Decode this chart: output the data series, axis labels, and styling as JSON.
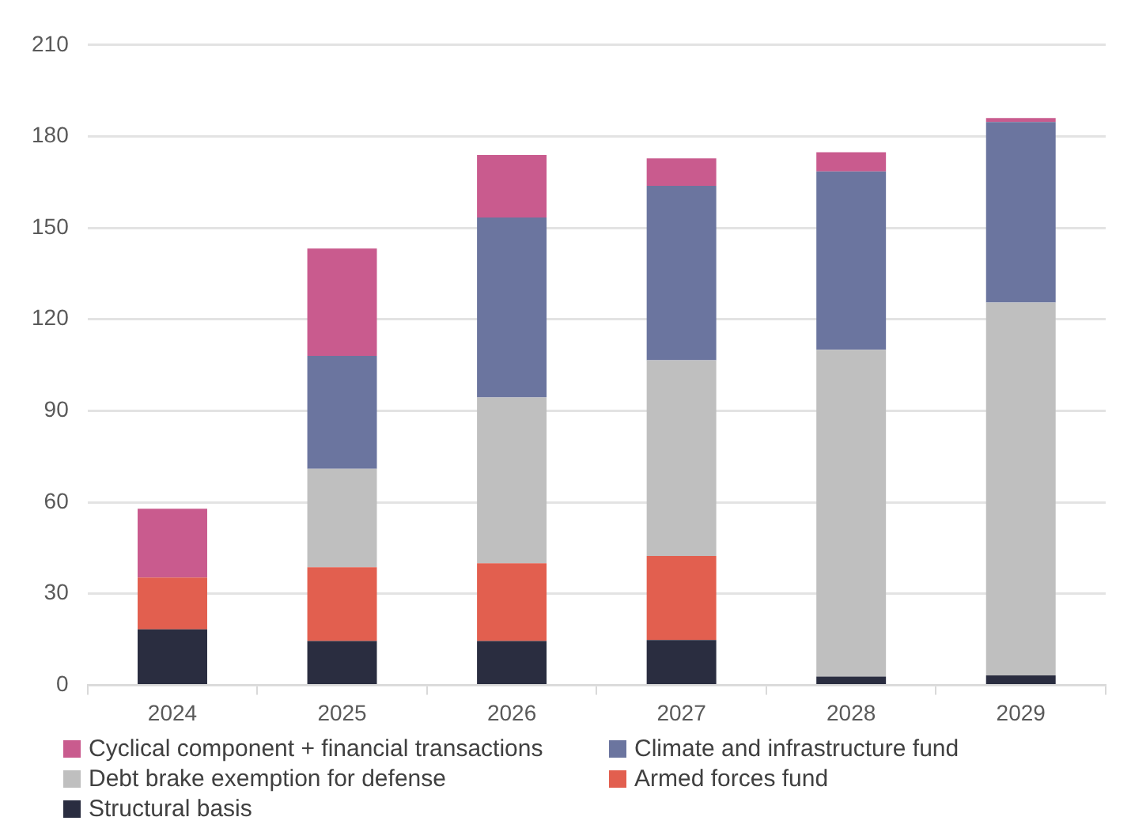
{
  "chart_data": {
    "type": "bar",
    "stacked": true,
    "categories": [
      "2024",
      "2025",
      "2026",
      "2027",
      "2028",
      "2029"
    ],
    "series": [
      {
        "name": "Structural basis",
        "color": "#2a2d40",
        "values": [
          18.3,
          14.5,
          14.5,
          14.8,
          2.8,
          3.2
        ]
      },
      {
        "name": "Armed forces fund",
        "color": "#e25f4f",
        "values": [
          17,
          24.2,
          25.5,
          27.6,
          0,
          0
        ]
      },
      {
        "name": "Debt brake exemption for defense",
        "color": "#bfbfbf",
        "values": [
          0,
          32.3,
          54.4,
          64.2,
          107.2,
          122.3
        ]
      },
      {
        "name": "Climate and infrastructure fund",
        "color": "#6b759f",
        "values": [
          0,
          37,
          59,
          57.2,
          58.5,
          59.2
        ]
      },
      {
        "name": "Cyclical component + financial transactions",
        "color": "#c95b8e",
        "values": [
          22.6,
          35.2,
          20.5,
          9,
          6.3,
          1.3
        ]
      }
    ],
    "ylim": [
      0,
      210
    ],
    "yticks": [
      0,
      30,
      60,
      90,
      120,
      150,
      180,
      210
    ],
    "grid": "y",
    "legend": "bottom"
  }
}
